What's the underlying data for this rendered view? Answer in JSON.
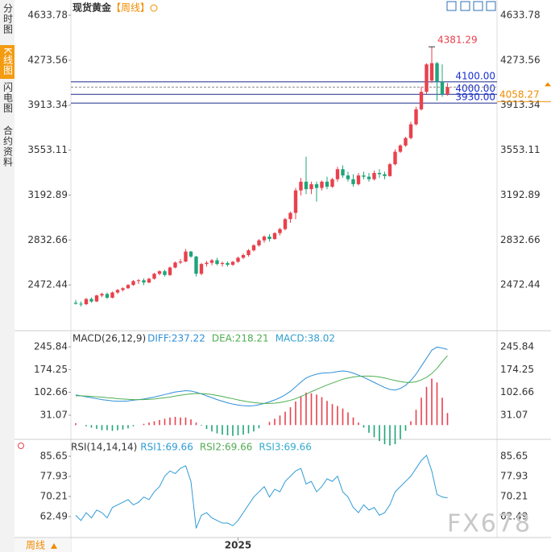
{
  "ui": {
    "sidebar_tabs": [
      "分时图",
      "K线图",
      "闪电图",
      "合约资料"
    ],
    "period_button": "周线",
    "watermark": "FX678"
  },
  "chart_data": [
    {
      "type": "candlestick",
      "title": "现货黄金",
      "period": "【周线】",
      "categories": [
        null,
        null,
        null,
        null,
        null,
        null,
        null,
        null,
        null,
        null,
        null,
        null,
        null,
        null,
        null,
        null,
        null,
        null,
        null,
        null,
        null,
        null,
        null,
        null,
        null,
        null,
        null,
        null,
        null,
        null,
        null,
        "2025",
        null,
        null,
        null,
        null,
        null,
        null,
        null,
        null,
        null,
        null,
        null,
        null,
        null,
        null,
        null,
        null,
        null,
        null,
        null,
        null,
        null,
        null,
        null,
        null,
        null,
        null,
        null,
        null,
        null,
        null,
        null,
        null,
        null,
        null,
        null,
        null,
        null,
        null,
        null,
        null
      ],
      "open": [
        2330,
        2322,
        2318,
        2360,
        2340,
        2388,
        2400,
        2370,
        2412,
        2432,
        2446,
        2472,
        2503,
        2510,
        2492,
        2522,
        2562,
        2582,
        2552,
        2612,
        2652,
        2660,
        2740,
        2700,
        2562,
        2640,
        2650,
        2670,
        2640,
        2648,
        2634,
        2658,
        2690,
        2712,
        2750,
        2790,
        2830,
        2860,
        2840,
        2888,
        2920,
        3000,
        3050,
        3230,
        3300,
        3240,
        3280,
        3250,
        3300,
        3260,
        3320,
        3400,
        3350,
        3320,
        3280,
        3350,
        3340,
        3320,
        3370,
        3360,
        3345,
        3440,
        3540,
        3590,
        3650,
        3760,
        3880,
        4020,
        4110,
        4250,
        4100,
        4000
      ],
      "high": [
        2352,
        2340,
        2368,
        2372,
        2395,
        2410,
        2412,
        2420,
        2440,
        2455,
        2480,
        2512,
        2520,
        2525,
        2530,
        2570,
        2590,
        2595,
        2620,
        2660,
        2680,
        2760,
        2745,
        2705,
        2650,
        2665,
        2680,
        2690,
        2660,
        2660,
        2665,
        2700,
        2725,
        2760,
        2800,
        2840,
        2870,
        2880,
        2895,
        2930,
        3010,
        3060,
        3250,
        3330,
        3500,
        3300,
        3300,
        3310,
        3340,
        3330,
        3420,
        3430,
        3380,
        3360,
        3370,
        3380,
        3370,
        3390,
        3400,
        3380,
        3450,
        3560,
        3600,
        3660,
        3780,
        3900,
        4060,
        4250,
        4381.29,
        4260,
        4240,
        4090
      ],
      "low": [
        2315,
        2300,
        2310,
        2330,
        2335,
        2375,
        2360,
        2365,
        2400,
        2420,
        2440,
        2465,
        2480,
        2470,
        2485,
        2515,
        2550,
        2540,
        2545,
        2605,
        2640,
        2655,
        2690,
        2540,
        2550,
        2620,
        2630,
        2630,
        2620,
        2620,
        2625,
        2650,
        2680,
        2700,
        2740,
        2780,
        2810,
        2820,
        2835,
        2870,
        2910,
        2970,
        3000,
        3190,
        3200,
        3200,
        3140,
        3230,
        3240,
        3250,
        3300,
        3330,
        3300,
        3260,
        3270,
        3320,
        3300,
        3310,
        3330,
        3320,
        3340,
        3430,
        3530,
        3580,
        3640,
        3750,
        3870,
        4000,
        4090,
        3950,
        3980,
        3990
      ],
      "close": [
        2322,
        2318,
        2360,
        2340,
        2388,
        2400,
        2370,
        2412,
        2432,
        2446,
        2472,
        2503,
        2510,
        2492,
        2522,
        2562,
        2582,
        2552,
        2612,
        2652,
        2660,
        2740,
        2700,
        2562,
        2640,
        2650,
        2670,
        2640,
        2648,
        2634,
        2658,
        2690,
        2712,
        2750,
        2790,
        2830,
        2860,
        2840,
        2888,
        2920,
        3000,
        3050,
        3230,
        3300,
        3240,
        3280,
        3250,
        3300,
        3260,
        3320,
        3400,
        3350,
        3320,
        3280,
        3350,
        3340,
        3320,
        3370,
        3360,
        3345,
        3440,
        3540,
        3590,
        3650,
        3760,
        3880,
        4020,
        4240,
        4250,
        4100,
        4000,
        4058.27
      ],
      "up_color": "#e8414d",
      "down_color": "#1fa57a",
      "ylim": [
        2112,
        4666
      ],
      "yticks": [
        2472.44,
        2832.66,
        3192.89,
        3553.11,
        3913.34,
        4273.56,
        4633.78
      ],
      "levels": [
        {
          "value": 4100,
          "label": "4100.00"
        },
        {
          "value": 4000,
          "label": "4000.00"
        },
        {
          "value": 3930,
          "label": "3930.00"
        }
      ],
      "level_color": "#1c2a8c",
      "last_price": 4058.27,
      "last_price_color": "#f08c00",
      "max_label": 4381.29,
      "max_color": "#e8414d"
    },
    {
      "type": "macd",
      "title": "MACD(26,12,9)",
      "series": [
        {
          "name": "DIFF:237.22",
          "color": "#2f8fd8",
          "values": [
            95,
            92,
            89,
            86,
            83,
            80,
            78,
            76,
            75,
            75,
            76,
            78,
            80,
            82,
            85,
            88,
            92,
            96,
            100,
            104,
            106,
            108,
            107,
            103,
            98,
            92,
            86,
            80,
            75,
            70,
            66,
            63,
            61,
            60,
            61,
            64,
            68,
            73,
            79,
            86,
            95,
            106,
            120,
            135,
            148,
            155,
            160,
            163,
            164,
            165,
            168,
            170,
            168,
            163,
            157,
            150,
            142,
            134,
            126,
            118,
            112,
            110,
            115,
            125,
            140,
            160,
            185,
            210,
            235,
            245,
            242,
            237.22
          ]
        },
        {
          "name": "DEA:218.21",
          "color": "#4caf50",
          "values": [
            92,
            92,
            91,
            90,
            89,
            88,
            86,
            85,
            83,
            82,
            81,
            80,
            80,
            80,
            81,
            82,
            84,
            86,
            88,
            91,
            94,
            96,
            98,
            99,
            99,
            98,
            96,
            93,
            90,
            86,
            83,
            79,
            76,
            73,
            71,
            69,
            68,
            68,
            69,
            71,
            74,
            78,
            83,
            90,
            97,
            105,
            112,
            119,
            126,
            132,
            138,
            144,
            148,
            151,
            153,
            154,
            154,
            153,
            151,
            148,
            144,
            140,
            137,
            134,
            134,
            136,
            142,
            150,
            162,
            178,
            199,
            218.21
          ]
        }
      ],
      "histogram": {
        "name": "MACD:38.02",
        "color": "#33a0d0",
        "values": [
          6,
          0,
          -4,
          -8,
          -12,
          -16,
          -16,
          -18,
          -16,
          -14,
          -10,
          -4,
          0,
          4,
          8,
          12,
          16,
          20,
          24,
          26,
          24,
          24,
          18,
          8,
          -2,
          -12,
          -20,
          -26,
          -30,
          -32,
          -34,
          -32,
          -30,
          -26,
          -20,
          -10,
          0,
          10,
          20,
          30,
          42,
          56,
          74,
          90,
          102,
          100,
          96,
          88,
          76,
          66,
          60,
          52,
          40,
          24,
          8,
          -8,
          -24,
          -38,
          -50,
          -60,
          -64,
          -60,
          -44,
          -18,
          12,
          48,
          86,
          120,
          146,
          134,
          86,
          38.02
        ]
      },
      "up_color": "#e8414d",
      "down_color": "#1fa57a",
      "ylim": [
        -42.2,
        291.3
      ],
      "yticks": [
        31.07,
        102.66,
        174.25,
        245.84
      ]
    },
    {
      "type": "line",
      "title": "RSI(14,14,14)",
      "series": [
        {
          "name": "RSI1:69.66",
          "color": "#2f9bd6",
          "values": [
            63,
            61,
            64,
            62,
            65,
            64,
            62,
            66,
            67,
            68,
            69,
            67,
            68,
            70,
            69,
            72,
            74,
            78,
            80,
            79,
            81,
            82,
            76,
            58,
            63,
            64,
            62,
            61,
            60,
            60,
            59,
            61,
            64,
            67,
            70,
            72,
            74,
            70,
            73,
            72,
            76,
            78,
            80,
            81,
            75,
            76,
            72,
            74,
            77,
            76,
            78,
            72,
            70,
            66,
            64,
            67,
            65,
            66,
            63,
            64,
            67,
            72,
            74,
            76,
            78,
            81,
            84,
            86,
            80,
            71,
            70,
            69.66
          ]
        }
      ],
      "extra_legend": [
        {
          "name": "RSI2:69.66",
          "color": "#55aa55"
        },
        {
          "name": "RSI3:69.66",
          "color": "#33aacc"
        }
      ],
      "ylim": [
        54.46,
        90.9
      ],
      "yticks": [
        62.49,
        70.21,
        77.93,
        85.65
      ]
    }
  ]
}
